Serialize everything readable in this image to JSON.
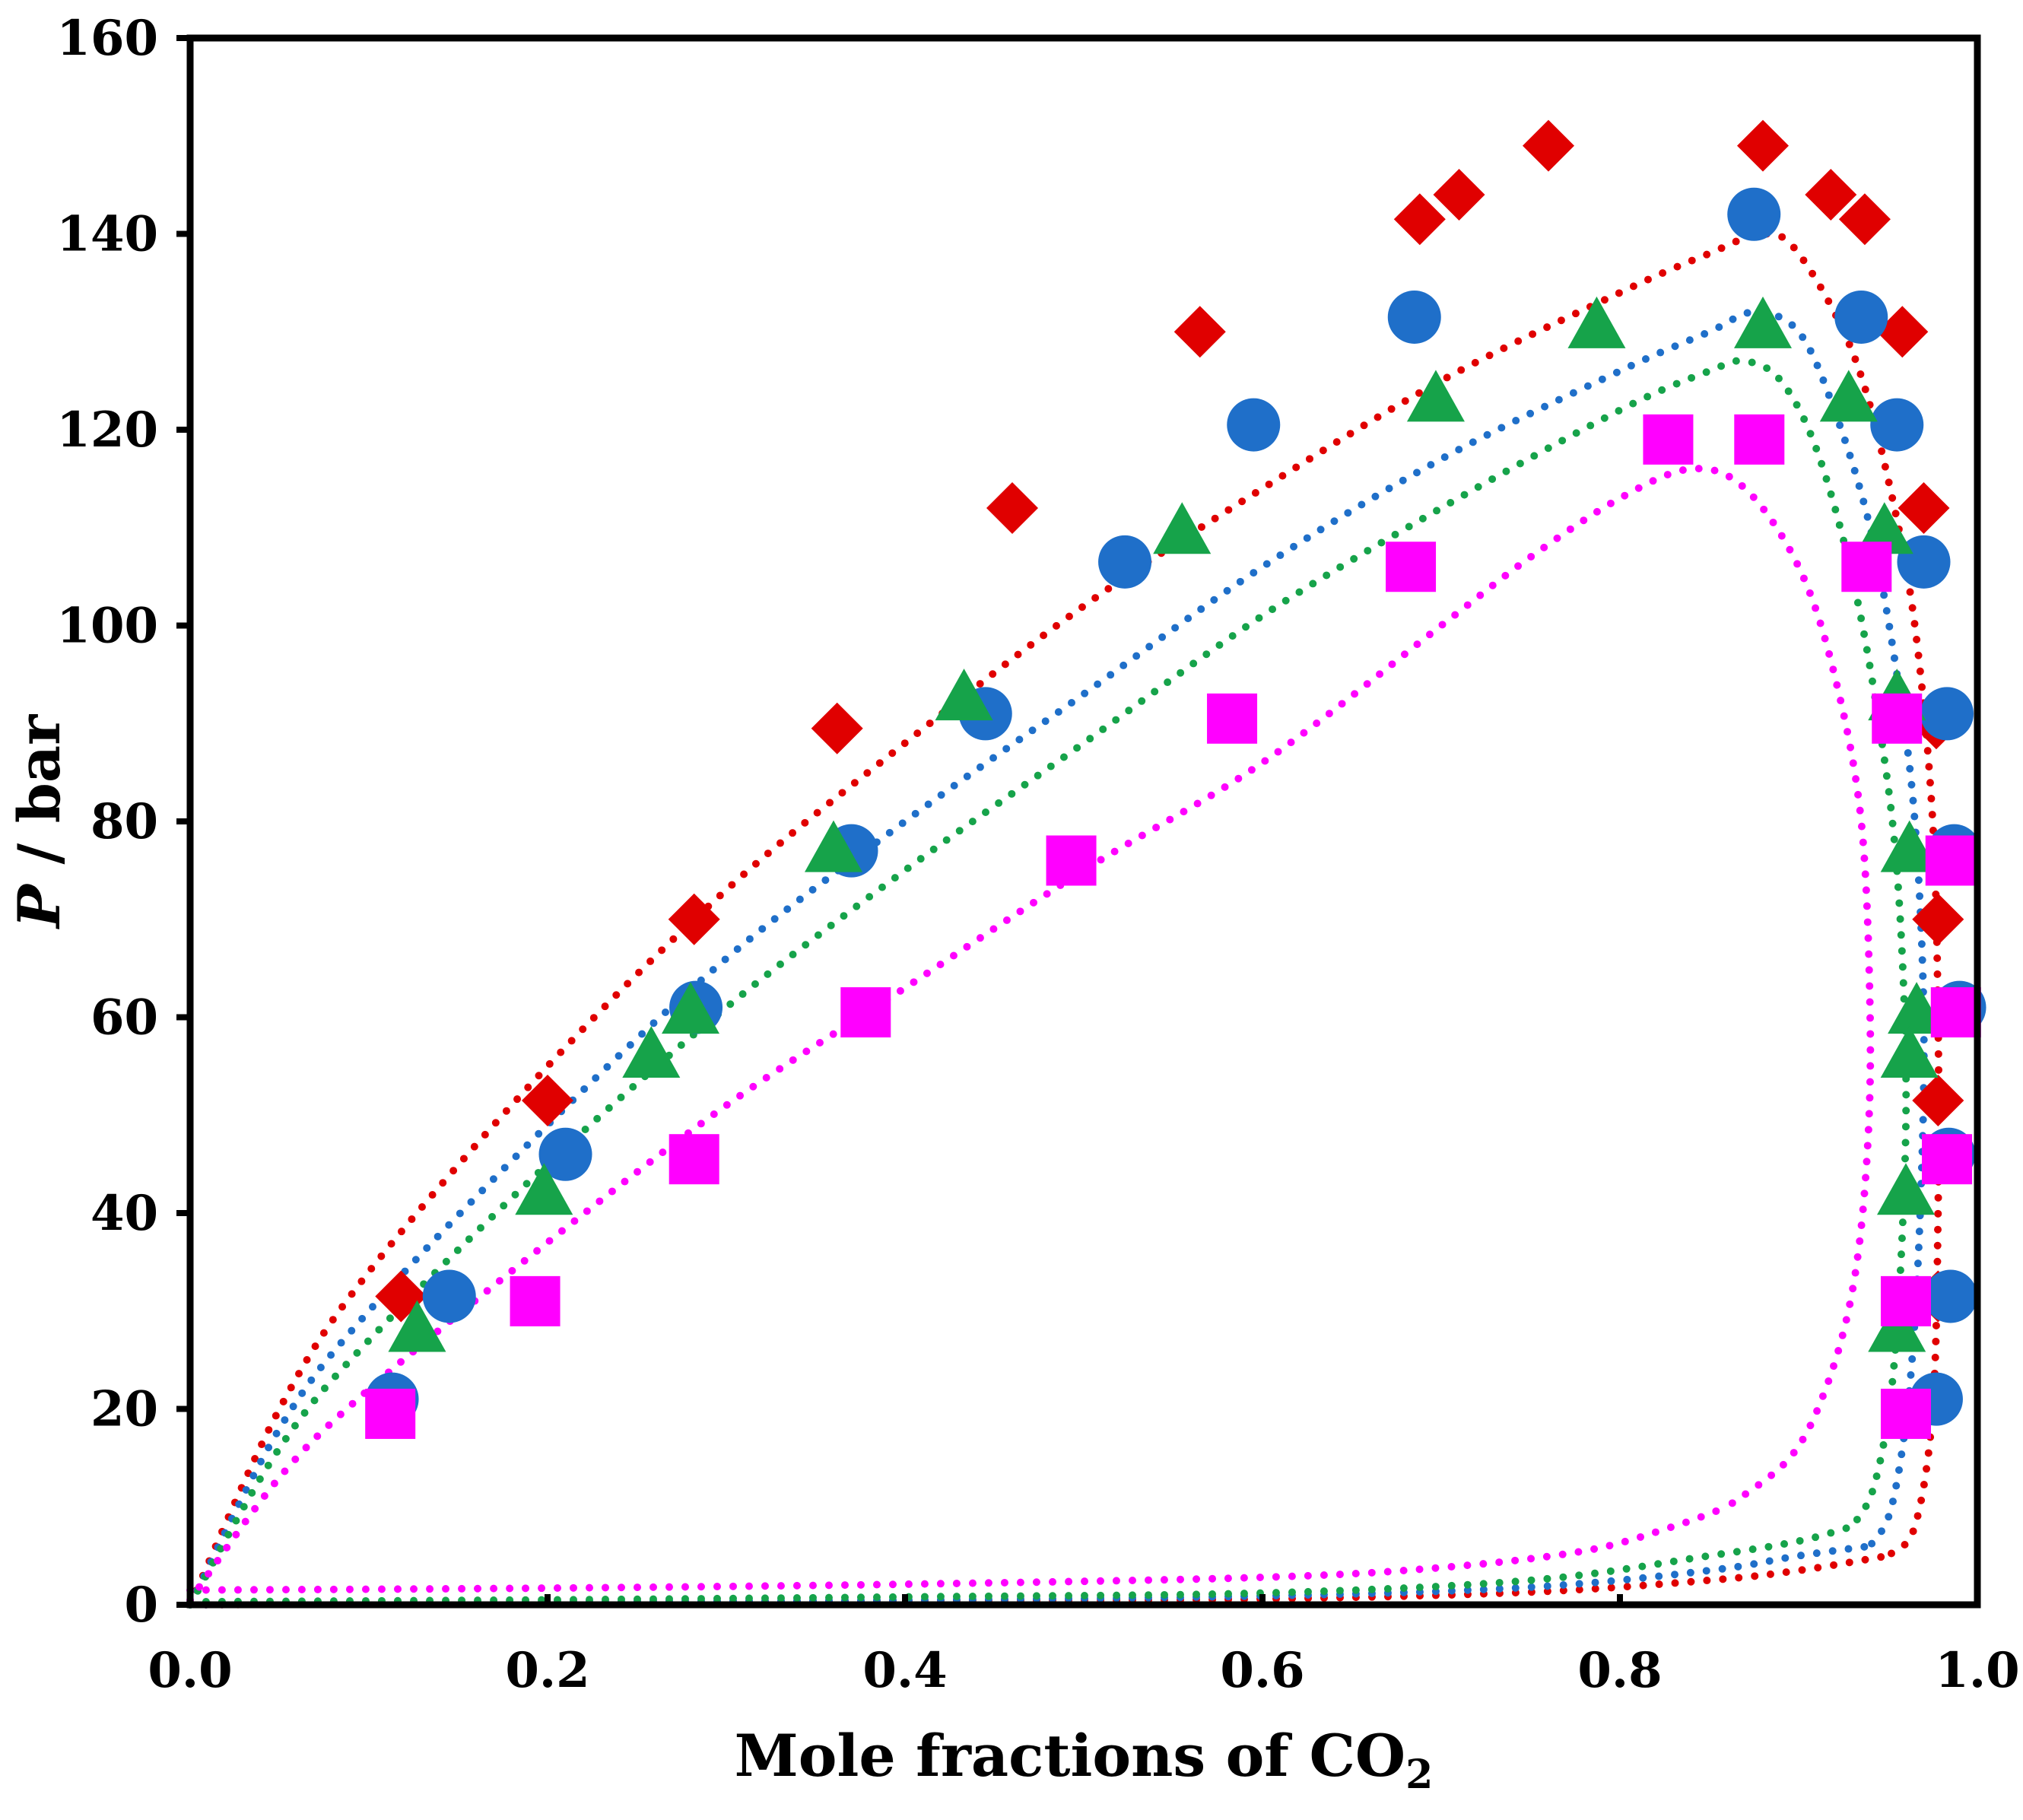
{
  "chart_data": {
    "type": "scatter",
    "xlabel": {
      "main": "Mole fractions of CO",
      "sub": "2"
    },
    "ylabel": {
      "italic": "P",
      "rest": " / bar"
    },
    "xlim": [
      0,
      1
    ],
    "ylim": [
      0,
      160
    ],
    "xticks": [
      "0.0",
      "0.2",
      "0.4",
      "0.6",
      "0.8",
      "1.0"
    ],
    "yticks": [
      "0",
      "20",
      "40",
      "60",
      "80",
      "100",
      "120",
      "140",
      "160"
    ],
    "xtick_values": [
      0,
      0.2,
      0.4,
      0.6,
      0.8,
      1.0
    ],
    "ytick_values": [
      0,
      20,
      40,
      60,
      80,
      100,
      120,
      140,
      160
    ],
    "grid": false,
    "legend": "none",
    "series": [
      {
        "marker": "diamond",
        "color": "#e00000",
        "points": [
          [
            0.118,
            31.5
          ],
          [
            0.2,
            51.5
          ],
          [
            0.282,
            70
          ],
          [
            0.362,
            89.5
          ],
          [
            0.46,
            112
          ],
          [
            0.565,
            130
          ],
          [
            0.688,
            141.5
          ],
          [
            0.71,
            144
          ],
          [
            0.76,
            149
          ],
          [
            0.88,
            149
          ],
          [
            0.918,
            144
          ],
          [
            0.937,
            141.5
          ],
          [
            0.958,
            130
          ],
          [
            0.97,
            112
          ],
          [
            0.977,
            90
          ],
          [
            0.978,
            70
          ],
          [
            0.978,
            51.5
          ],
          [
            0.978,
            31.5
          ]
        ],
        "curve": {
          "bubble": [
            [
              0,
              0
            ],
            [
              0.05,
              20
            ],
            [
              0.1,
              34
            ],
            [
              0.2,
              55
            ],
            [
              0.3,
              73
            ],
            [
              0.4,
              88
            ],
            [
              0.5,
              102
            ],
            [
              0.6,
              114
            ],
            [
              0.7,
              125
            ],
            [
              0.8,
              134
            ],
            [
              0.85,
              138
            ],
            [
              0.88,
              140
            ],
            [
              0.9,
              138
            ],
            [
              0.93,
              128
            ],
            [
              0.95,
              115
            ],
            [
              0.965,
              100
            ],
            [
              0.975,
              80
            ],
            [
              0.978,
              60
            ],
            [
              0.978,
              40
            ],
            [
              0.975,
              20
            ],
            [
              0.965,
              8
            ],
            [
              0.95,
              5
            ]
          ],
          "dew": [
            [
              0,
              0
            ],
            [
              0.2,
              0.2
            ],
            [
              0.4,
              0.4
            ],
            [
              0.6,
              0.6
            ],
            [
              0.75,
              1.3
            ],
            [
              0.85,
              2.5
            ],
            [
              0.9,
              3.5
            ],
            [
              0.95,
              5
            ]
          ]
        }
      },
      {
        "marker": "circle",
        "color": "#1f6fc9",
        "points": [
          [
            0.113,
            21
          ],
          [
            0.145,
            31.5
          ],
          [
            0.21,
            46
          ],
          [
            0.283,
            61
          ],
          [
            0.37,
            77
          ],
          [
            0.445,
            91
          ],
          [
            0.523,
            106.5
          ],
          [
            0.595,
            120.5
          ],
          [
            0.685,
            131.5
          ],
          [
            0.875,
            142
          ],
          [
            0.935,
            131.5
          ],
          [
            0.955,
            120.5
          ],
          [
            0.97,
            106.5
          ],
          [
            0.983,
            91
          ],
          [
            0.987,
            77
          ],
          [
            0.99,
            61
          ],
          [
            0.984,
            46
          ],
          [
            0.985,
            31.5
          ],
          [
            0.977,
            21
          ]
        ],
        "curve": {
          "bubble": [
            [
              0,
              0
            ],
            [
              0.05,
              18
            ],
            [
              0.1,
              30
            ],
            [
              0.2,
              49
            ],
            [
              0.3,
              66
            ],
            [
              0.4,
              80
            ],
            [
              0.5,
              93
            ],
            [
              0.6,
              106
            ],
            [
              0.7,
              117
            ],
            [
              0.8,
              126
            ],
            [
              0.85,
              130
            ],
            [
              0.875,
              132
            ],
            [
              0.9,
              130
            ],
            [
              0.92,
              122
            ],
            [
              0.94,
              110
            ],
            [
              0.955,
              95
            ],
            [
              0.965,
              80
            ],
            [
              0.97,
              60
            ],
            [
              0.968,
              40
            ],
            [
              0.962,
              22
            ],
            [
              0.952,
              10
            ],
            [
              0.94,
              6
            ]
          ],
          "dew": [
            [
              0,
              0
            ],
            [
              0.2,
              0.3
            ],
            [
              0.4,
              0.5
            ],
            [
              0.6,
              0.9
            ],
            [
              0.75,
              1.8
            ],
            [
              0.85,
              3.5
            ],
            [
              0.9,
              5
            ],
            [
              0.94,
              6
            ]
          ]
        }
      },
      {
        "marker": "triangle",
        "color": "#16a34a",
        "points": [
          [
            0.127,
            28
          ],
          [
            0.198,
            42
          ],
          [
            0.258,
            56
          ],
          [
            0.28,
            60.5
          ],
          [
            0.36,
            77
          ],
          [
            0.433,
            92.5
          ],
          [
            0.555,
            109.5
          ],
          [
            0.697,
            123
          ],
          [
            0.787,
            130.5
          ],
          [
            0.88,
            130.5
          ],
          [
            0.928,
            123
          ],
          [
            0.948,
            109.5
          ],
          [
            0.955,
            92.5
          ],
          [
            0.962,
            77
          ],
          [
            0.966,
            60.5
          ],
          [
            0.962,
            56
          ],
          [
            0.96,
            42
          ],
          [
            0.955,
            28
          ]
        ],
        "curve": {
          "bubble": [
            [
              0,
              0
            ],
            [
              0.05,
              16
            ],
            [
              0.1,
              27
            ],
            [
              0.2,
              45
            ],
            [
              0.3,
              61
            ],
            [
              0.4,
              75
            ],
            [
              0.5,
              88
            ],
            [
              0.6,
              101
            ],
            [
              0.7,
              112
            ],
            [
              0.8,
              122
            ],
            [
              0.85,
              126
            ],
            [
              0.87,
              127
            ],
            [
              0.89,
              125
            ],
            [
              0.91,
              118
            ],
            [
              0.93,
              105
            ],
            [
              0.945,
              90
            ],
            [
              0.955,
              75
            ],
            [
              0.96,
              55
            ],
            [
              0.958,
              38
            ],
            [
              0.952,
              22
            ],
            [
              0.942,
              12
            ],
            [
              0.93,
              8
            ]
          ],
          "dew": [
            [
              0,
              0.3
            ],
            [
              0.2,
              0.5
            ],
            [
              0.4,
              0.8
            ],
            [
              0.6,
              1.2
            ],
            [
              0.75,
              2.5
            ],
            [
              0.85,
              5
            ],
            [
              0.9,
              6.5
            ],
            [
              0.93,
              8
            ]
          ]
        }
      },
      {
        "marker": "square",
        "color": "#ff00ff",
        "points": [
          [
            0.112,
            19.5
          ],
          [
            0.193,
            31
          ],
          [
            0.282,
            45.5
          ],
          [
            0.378,
            60.5
          ],
          [
            0.493,
            76
          ],
          [
            0.583,
            90.5
          ],
          [
            0.683,
            106
          ],
          [
            0.827,
            119
          ],
          [
            0.878,
            119
          ],
          [
            0.938,
            106
          ],
          [
            0.955,
            90.5
          ],
          [
            0.985,
            76
          ],
          [
            0.988,
            60.5
          ],
          [
            0.983,
            45.5
          ],
          [
            0.96,
            31
          ],
          [
            0.96,
            19.5
          ]
        ],
        "curve": {
          "bubble": [
            [
              0,
              0.5
            ],
            [
              0.05,
              13
            ],
            [
              0.1,
              22
            ],
            [
              0.2,
              37
            ],
            [
              0.3,
              51
            ],
            [
              0.4,
              63
            ],
            [
              0.5,
              75
            ],
            [
              0.6,
              86
            ],
            [
              0.7,
              100
            ],
            [
              0.75,
              107
            ],
            [
              0.8,
              113
            ],
            [
              0.84,
              116
            ],
            [
              0.87,
              114
            ],
            [
              0.9,
              106
            ],
            [
              0.92,
              95
            ],
            [
              0.935,
              80
            ],
            [
              0.94,
              60
            ],
            [
              0.938,
              45
            ],
            [
              0.93,
              32
            ],
            [
              0.915,
              22
            ],
            [
              0.895,
              15
            ],
            [
              0.86,
              10
            ]
          ],
          "dew": [
            [
              0,
              1.5
            ],
            [
              0.2,
              1.7
            ],
            [
              0.4,
              2.1
            ],
            [
              0.6,
              2.8
            ],
            [
              0.7,
              3.8
            ],
            [
              0.78,
              5.5
            ],
            [
              0.83,
              8
            ],
            [
              0.86,
              10
            ]
          ]
        }
      }
    ]
  }
}
